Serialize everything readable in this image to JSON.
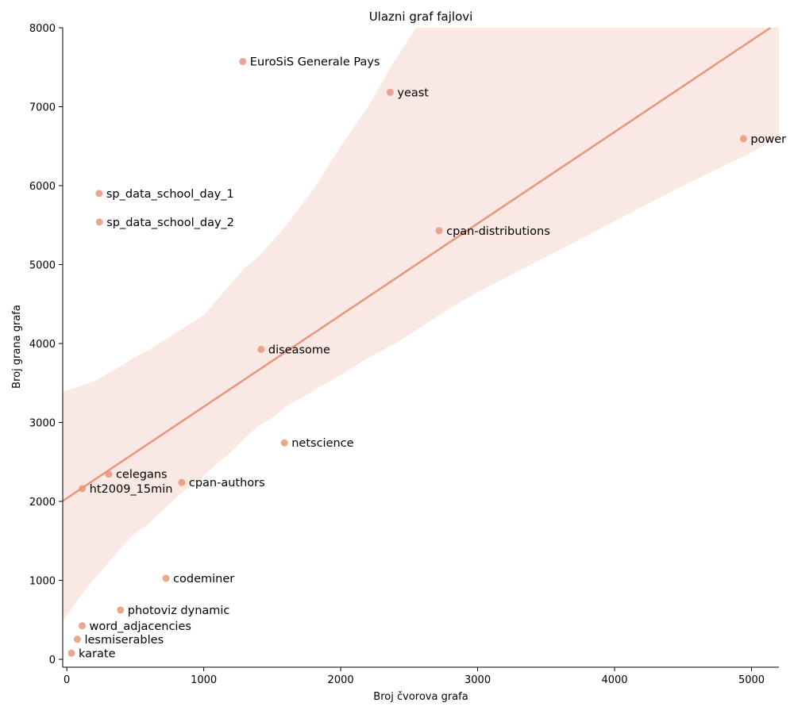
{
  "chart_data": {
    "type": "scatter",
    "title": "Ulazni graf fajlovi",
    "xlabel": "Broj čvorova grafa",
    "ylabel": "Broj grana grafa",
    "xlim": [
      -30,
      5200
    ],
    "ylim": [
      -100,
      8000
    ],
    "xticks": [
      0,
      1000,
      2000,
      3000,
      4000,
      5000
    ],
    "yticks": [
      0,
      1000,
      2000,
      3000,
      4000,
      5000,
      6000,
      7000,
      8000
    ],
    "grid": false,
    "colors": {
      "point": "#e8967a",
      "line": "#e8967a",
      "band": "#f9e8e3"
    },
    "points": [
      {
        "label": "EuroSiS Generale Pays",
        "x": 1285,
        "y": 7572
      },
      {
        "label": "yeast",
        "x": 2361,
        "y": 7182
      },
      {
        "label": "power",
        "x": 4941,
        "y": 6594
      },
      {
        "label": "sp_data_school_day_1",
        "x": 236,
        "y": 5901
      },
      {
        "label": "sp_data_school_day_2",
        "x": 238,
        "y": 5539
      },
      {
        "label": "cpan-distributions",
        "x": 2719,
        "y": 5428
      },
      {
        "label": "diseasome",
        "x": 1419,
        "y": 3926
      },
      {
        "label": "netscience",
        "x": 1589,
        "y": 2742
      },
      {
        "label": "celegans",
        "x": 306,
        "y": 2345
      },
      {
        "label": "cpan-authors",
        "x": 839,
        "y": 2240
      },
      {
        "label": "ht2009_15min",
        "x": 113,
        "y": 2163
      },
      {
        "label": "codeminer",
        "x": 724,
        "y": 1025
      },
      {
        "label": "photoviz dynamic",
        "x": 392,
        "y": 624
      },
      {
        "label": "word_adjacencies",
        "x": 112,
        "y": 425
      },
      {
        "label": "lesmiserables",
        "x": 77,
        "y": 254
      },
      {
        "label": "karate",
        "x": 34,
        "y": 78
      }
    ],
    "regression": {
      "intercept": 2040,
      "slope": 1.16
    },
    "ci_band": [
      {
        "x": -30,
        "lo": 480,
        "hi": 3390
      },
      {
        "x": 100,
        "lo": 800,
        "hi": 3460
      },
      {
        "x": 200,
        "lo": 1020,
        "hi": 3520
      },
      {
        "x": 300,
        "lo": 1220,
        "hi": 3620
      },
      {
        "x": 400,
        "lo": 1420,
        "hi": 3720
      },
      {
        "x": 500,
        "lo": 1600,
        "hi": 3830
      },
      {
        "x": 600,
        "lo": 1720,
        "hi": 3920
      },
      {
        "x": 800,
        "lo": 2050,
        "hi": 4140
      },
      {
        "x": 1000,
        "lo": 2330,
        "hi": 4360
      },
      {
        "x": 1100,
        "lo": 2480,
        "hi": 4560
      },
      {
        "x": 1200,
        "lo": 2630,
        "hi": 4760
      },
      {
        "x": 1300,
        "lo": 2800,
        "hi": 4960
      },
      {
        "x": 1400,
        "lo": 2960,
        "hi": 5100
      },
      {
        "x": 1500,
        "lo": 3060,
        "hi": 5300
      },
      {
        "x": 1600,
        "lo": 3200,
        "hi": 5490
      },
      {
        "x": 1800,
        "lo": 3400,
        "hi": 5950
      },
      {
        "x": 2000,
        "lo": 3600,
        "hi": 6500
      },
      {
        "x": 2200,
        "lo": 3820,
        "hi": 7000
      },
      {
        "x": 2400,
        "lo": 4000,
        "hi": 7600
      },
      {
        "x": 2550,
        "lo": 4170,
        "hi": 8000
      },
      {
        "x": 2800,
        "lo": 4450,
        "hi": 8000
      },
      {
        "x": 3000,
        "lo": 4650,
        "hi": 8000
      },
      {
        "x": 3500,
        "lo": 5100,
        "hi": 8000
      },
      {
        "x": 4000,
        "lo": 5550,
        "hi": 8000
      },
      {
        "x": 4500,
        "lo": 6000,
        "hi": 8000
      },
      {
        "x": 5000,
        "lo": 6420,
        "hi": 8000
      },
      {
        "x": 5200,
        "lo": 6620,
        "hi": 8000
      }
    ]
  }
}
